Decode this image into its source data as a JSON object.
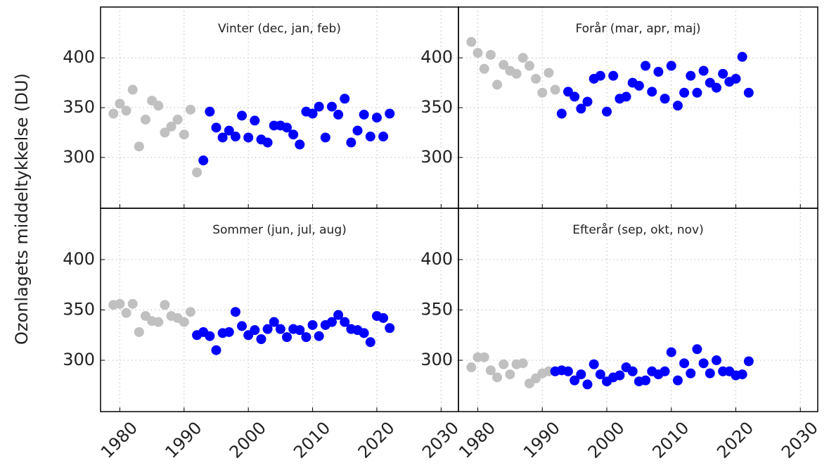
{
  "y_label": "Ozonlagets middeltykkelse (DU)",
  "chart_data": [
    {
      "type": "scatter",
      "title": "Vinter (dec, jan, feb)",
      "xlim": [
        1977,
        2032.7
      ],
      "ylim": [
        249,
        451
      ],
      "xticks": [
        1980,
        1990,
        2000,
        2010,
        2020,
        2030
      ],
      "yticks": [
        300,
        350,
        400
      ],
      "grid": true,
      "series": [
        {
          "color": "#c0c0c0",
          "x": [
            1979,
            1980,
            1981,
            1982,
            1983,
            1984,
            1985,
            1986,
            1987,
            1988,
            1989,
            1990,
            1991,
            1992
          ],
          "values": [
            344,
            354,
            347,
            368,
            311,
            338,
            357,
            352,
            325,
            331,
            338,
            323,
            348,
            285
          ]
        },
        {
          "color": "#0000ff",
          "x": [
            1993,
            1994,
            1995,
            1996,
            1997,
            1998,
            1999,
            2000,
            2001,
            2002,
            2003,
            2004,
            2005,
            2006,
            2007,
            2008,
            2009,
            2010,
            2011,
            2012,
            2013,
            2014,
            2015,
            2016,
            2017,
            2018,
            2019,
            2020,
            2021,
            2022
          ],
          "values": [
            297,
            346,
            330,
            320,
            327,
            321,
            342,
            320,
            337,
            318,
            315,
            332,
            332,
            330,
            323,
            313,
            346,
            344,
            351,
            320,
            351,
            343,
            359,
            315,
            327,
            343,
            321,
            340,
            321,
            344
          ]
        }
      ]
    },
    {
      "type": "scatter",
      "title": "Forår (mar, apr, maj)",
      "xlim": [
        1977,
        2032.7
      ],
      "ylim": [
        249,
        451
      ],
      "xticks": [
        1980,
        1990,
        2000,
        2010,
        2020,
        2030
      ],
      "yticks": [
        300,
        350,
        400
      ],
      "grid": true,
      "series": [
        {
          "color": "#c0c0c0",
          "x": [
            1979,
            1980,
            1981,
            1982,
            1983,
            1984,
            1985,
            1986,
            1987,
            1988,
            1989,
            1990,
            1991,
            1992
          ],
          "values": [
            416,
            405,
            389,
            403,
            373,
            393,
            387,
            384,
            400,
            392,
            379,
            365,
            385,
            368
          ]
        },
        {
          "color": "#0000ff",
          "x": [
            1993,
            1994,
            1995,
            1996,
            1997,
            1998,
            1999,
            2000,
            2001,
            2002,
            2003,
            2004,
            2005,
            2006,
            2007,
            2008,
            2009,
            2010,
            2011,
            2012,
            2013,
            2014,
            2015,
            2016,
            2017,
            2018,
            2019,
            2020,
            2021,
            2022
          ],
          "values": [
            344,
            366,
            361,
            349,
            356,
            379,
            382,
            346,
            382,
            359,
            361,
            375,
            372,
            392,
            366,
            386,
            359,
            392,
            352,
            365,
            382,
            365,
            387,
            375,
            370,
            384,
            376,
            379,
            401,
            365
          ]
        }
      ]
    },
    {
      "type": "scatter",
      "title": "Sommer (jun, jul, aug)",
      "xlim": [
        1977,
        2032.7
      ],
      "ylim": [
        249,
        451
      ],
      "xticks": [
        1980,
        1990,
        2000,
        2010,
        2020,
        2030
      ],
      "yticks": [
        300,
        350,
        400
      ],
      "grid": true,
      "series": [
        {
          "color": "#c0c0c0",
          "x": [
            1979,
            1980,
            1981,
            1982,
            1983,
            1984,
            1985,
            1986,
            1987,
            1988,
            1989,
            1990,
            1991
          ],
          "values": [
            355,
            356,
            347,
            356,
            328,
            344,
            339,
            338,
            355,
            344,
            342,
            338,
            348
          ]
        },
        {
          "color": "#0000ff",
          "x": [
            1992,
            1993,
            1994,
            1995,
            1996,
            1997,
            1998,
            1999,
            2000,
            2001,
            2002,
            2003,
            2004,
            2005,
            2006,
            2007,
            2008,
            2009,
            2010,
            2011,
            2012,
            2013,
            2014,
            2015,
            2016,
            2017,
            2018,
            2019,
            2020,
            2021,
            2022
          ],
          "values": [
            325,
            328,
            324,
            310,
            327,
            328,
            348,
            334,
            325,
            330,
            321,
            331,
            338,
            331,
            323,
            331,
            330,
            323,
            335,
            324,
            335,
            338,
            345,
            338,
            331,
            330,
            327,
            318,
            344,
            342,
            332
          ]
        }
      ]
    },
    {
      "type": "scatter",
      "title": "Efterår (sep, okt, nov)",
      "xlim": [
        1977,
        2032.7
      ],
      "ylim": [
        249,
        451
      ],
      "xticks": [
        1980,
        1990,
        2000,
        2010,
        2020,
        2030
      ],
      "yticks": [
        300,
        350,
        400
      ],
      "grid": true,
      "series": [
        {
          "color": "#c0c0c0",
          "x": [
            1979,
            1980,
            1981,
            1982,
            1983,
            1984,
            1985,
            1986,
            1987,
            1988,
            1989,
            1990,
            1991
          ],
          "values": [
            293,
            303,
            303,
            290,
            283,
            296,
            286,
            296,
            297,
            277,
            282,
            287,
            289
          ]
        },
        {
          "color": "#0000ff",
          "x": [
            1992,
            1993,
            1994,
            1995,
            1996,
            1997,
            1998,
            1999,
            2000,
            2001,
            2002,
            2003,
            2004,
            2005,
            2006,
            2007,
            2008,
            2009,
            2010,
            2011,
            2012,
            2013,
            2014,
            2015,
            2016,
            2017,
            2018,
            2019,
            2020,
            2021,
            2022
          ],
          "values": [
            289,
            290,
            289,
            280,
            286,
            276,
            296,
            286,
            279,
            283,
            285,
            293,
            289,
            279,
            280,
            289,
            286,
            289,
            308,
            280,
            297,
            287,
            311,
            297,
            287,
            300,
            289,
            289,
            285,
            286,
            299
          ]
        }
      ]
    }
  ]
}
